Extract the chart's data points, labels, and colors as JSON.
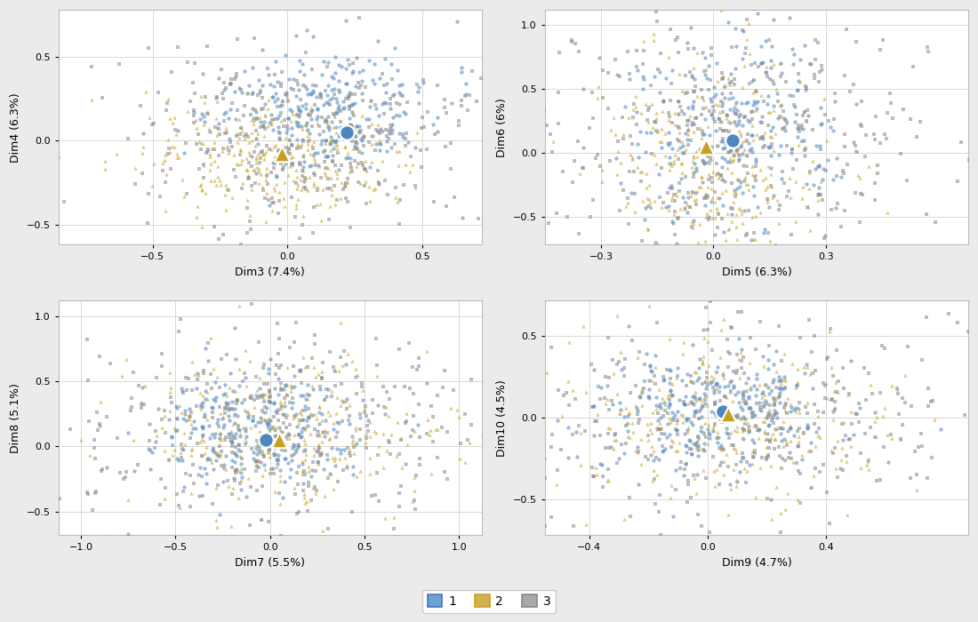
{
  "subplots": [
    {
      "xlabel": "Dim3 (7.4%)",
      "ylabel": "Dim4 (6.3%)",
      "xlim": [
        -0.85,
        0.72
      ],
      "ylim": [
        -0.62,
        0.78
      ],
      "xticks": [
        -0.5,
        0.0,
        0.5
      ],
      "yticks": [
        -0.5,
        0.0,
        0.5
      ]
    },
    {
      "xlabel": "Dim5 (6.3%)",
      "ylabel": "Dim6 (6%)",
      "xlim": [
        -0.45,
        0.68
      ],
      "ylim": [
        -0.72,
        1.12
      ],
      "xticks": [
        -0.3,
        0.0,
        0.3
      ],
      "yticks": [
        -0.5,
        0.0,
        0.5,
        1.0
      ]
    },
    {
      "xlabel": "Dim7 (5.5%)",
      "ylabel": "Dim8 (5.1%)",
      "xlim": [
        -1.12,
        1.12
      ],
      "ylim": [
        -0.68,
        1.12
      ],
      "xticks": [
        -1.0,
        -0.5,
        0.0,
        0.5,
        1.0
      ],
      "yticks": [
        -0.5,
        0.0,
        0.5,
        1.0
      ]
    },
    {
      "xlabel": "Dim9 (4.7%)",
      "ylabel": "Dim10 (4.5%)",
      "xlim": [
        -0.55,
        0.88
      ],
      "ylim": [
        -0.72,
        0.72
      ],
      "xticks": [
        -0.4,
        0.0,
        0.4
      ],
      "yticks": [
        -0.5,
        0.0,
        0.5
      ]
    }
  ],
  "cluster_colors": [
    "#4F86C0",
    "#C8A020",
    "#888888"
  ],
  "hull_edge_colors": [
    "#4472C4",
    "#C8A020",
    "#888888"
  ],
  "hull_fill_colors": [
    "#6BA3D0",
    "#D4B050",
    "#AAAAAA"
  ],
  "hull_alphas": [
    0.28,
    0.28,
    0.22
  ],
  "bg_color": "#EBEBEB",
  "panel_bg": "#FFFFFF",
  "grid_color": "#D8D8D8",
  "legend_labels": [
    "1",
    "2",
    "3"
  ]
}
